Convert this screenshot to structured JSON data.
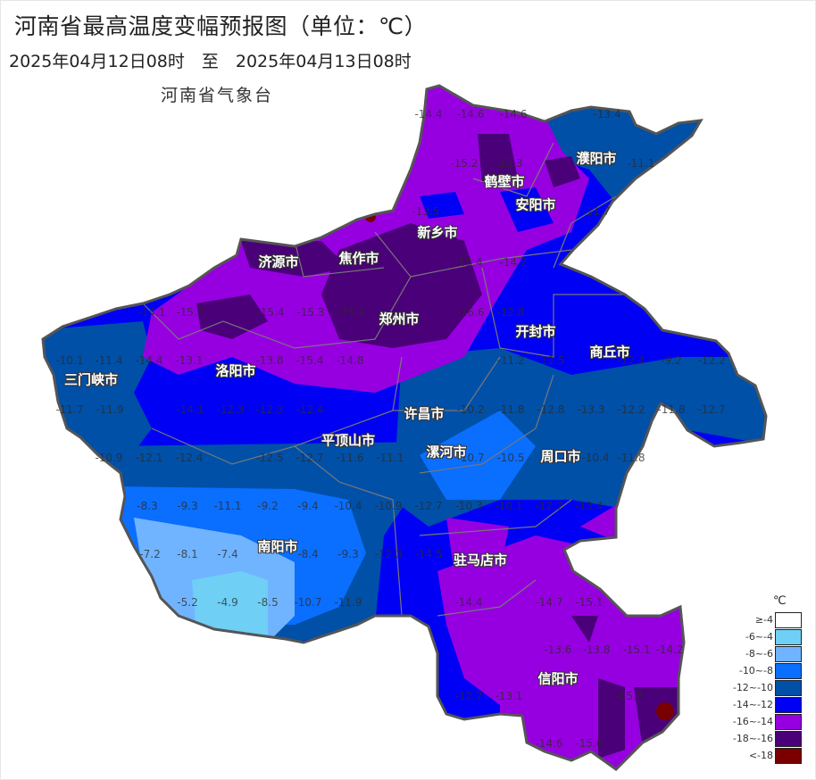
{
  "title": "河南省最高温度变幅预报图（单位：℃）",
  "period": "2025年04月12日08时　至　2025年04月13日08时",
  "agency": "河南省气象台",
  "legend": {
    "unit": "℃",
    "items": [
      {
        "label": "≥-4",
        "color": "#ffffff"
      },
      {
        "label": "-6~-4",
        "color": "#6fcff5"
      },
      {
        "label": "-8~-6",
        "color": "#70b4ff"
      },
      {
        "label": "-10~-8",
        "color": "#0a6eff"
      },
      {
        "label": "-12~-10",
        "color": "#0050a8"
      },
      {
        "label": "-14~-12",
        "color": "#0000f5"
      },
      {
        "label": "-16~-14",
        "color": "#9600e0"
      },
      {
        "label": "-18~-16",
        "color": "#4a0078"
      },
      {
        "label": "<-18",
        "color": "#7a0000"
      }
    ]
  },
  "cities": [
    "濮阳市",
    "鹤壁市",
    "安阳市",
    "新乡市",
    "济源市",
    "焦作市",
    "郑州市",
    "开封市",
    "商丘市",
    "三门峡市",
    "洛阳市",
    "许昌市",
    "平顶山市",
    "漯河市",
    "周口市",
    "南阳市",
    "驻马店市",
    "信阳市"
  ],
  "values": [
    "-14.4",
    "-14.6",
    "-14.6",
    "-13.4",
    "-11.1",
    "-15.2",
    "-15.3",
    "-13.5",
    "-11.7",
    "-15.4",
    "-14.2",
    "-14.1",
    "-15.2",
    "-15.4",
    "-15.3",
    "-15.4",
    "-16.6",
    "-12.8",
    "-10.1",
    "-11.4",
    "-14.4",
    "-13.1",
    "-13.8",
    "-15.4",
    "-14.8",
    "-11.2",
    "-12.5",
    "-12.4",
    "-9.2",
    "-12.2",
    "-11.7",
    "-11.9",
    "-14.1",
    "-12.3",
    "-12.3",
    "-12.4",
    "-10.2",
    "-11.8",
    "-12.8",
    "-13.3",
    "-12.2",
    "-11.8",
    "-12.7",
    "-10.9",
    "-12.1",
    "-12.4",
    "-12.5",
    "-12.7",
    "-11.6",
    "-11.1",
    "-10.7",
    "-10.5",
    "-10.4",
    "-11.8",
    "-8.3",
    "-9.3",
    "-11.1",
    "-9.2",
    "-9.4",
    "-10.4",
    "-10.9",
    "-12.7",
    "-10.3",
    "-10.1",
    "-12.7",
    "-13.4",
    "-7.2",
    "-8.1",
    "-7.4",
    "-8.4",
    "-9.3",
    "-12.3",
    "-14.5",
    "-5.2",
    "-4.9",
    "-8.5",
    "-10.7",
    "-11.9",
    "-14.4",
    "-14.7",
    "-15.1",
    "-13.6",
    "-13.8",
    "-15.1",
    "-14.2",
    "-12.7",
    "-13.1",
    "-15.7",
    "-14.6",
    "-15.6"
  ]
}
